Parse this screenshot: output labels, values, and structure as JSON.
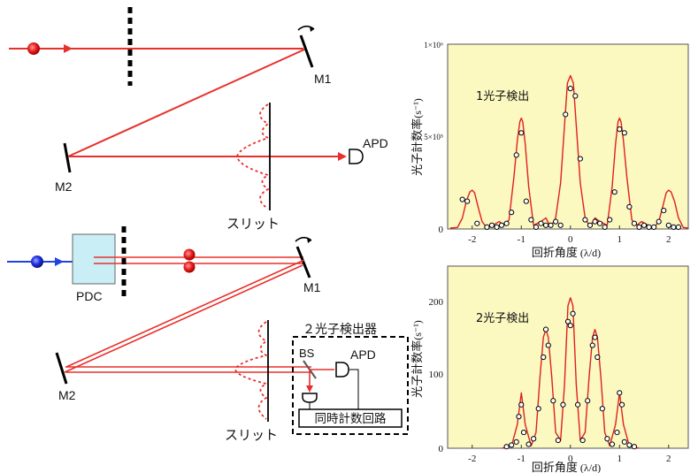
{
  "top": {
    "labels": {
      "m1": "M1",
      "m2": "M2",
      "apd": "APD",
      "slit": "スリット"
    }
  },
  "bottom": {
    "labels": {
      "pdc": "PDC",
      "m1": "M1",
      "m2": "M2",
      "apd": "APD",
      "bs": "BS",
      "slit": "スリット",
      "detector_title": "２光子検出器",
      "coincidence": "同時計数回路"
    }
  },
  "colors": {
    "beam": "#e8302a",
    "pump": "#2244dd",
    "plot_bg": "#fbf8c0",
    "curve": "#e02020",
    "crystal": "#c9eef6"
  },
  "chart_data": [
    {
      "type": "line",
      "title": "1光子検出",
      "xlabel": "回折角度",
      "xlabel_unit": "(λ/d)",
      "ylabel": "光子計数率",
      "ylabel_unit": "(s⁻¹)",
      "xlim": [
        -2.5,
        2.4
      ],
      "ylim": [
        0,
        1000000
      ],
      "x_ticks": [
        "-2",
        "-1",
        "0",
        "1",
        "2"
      ],
      "y_ticks": [
        "0",
        "5×10⁵",
        "1×10⁶"
      ],
      "curve": {
        "x": [
          -2.45,
          -2.3,
          -2.2,
          -2.12,
          -2.05,
          -2.0,
          -1.95,
          -1.88,
          -1.8,
          -1.7,
          -1.55,
          -1.45,
          -1.35,
          -1.25,
          -1.15,
          -1.08,
          -1.03,
          -1.0,
          -0.97,
          -0.92,
          -0.85,
          -0.75,
          -0.6,
          -0.5,
          -0.4,
          -0.3,
          -0.2,
          -0.12,
          -0.06,
          0.0,
          0.06,
          0.12,
          0.2,
          0.3,
          0.4,
          0.5,
          0.6,
          0.75,
          0.85,
          0.92,
          0.97,
          1.0,
          1.03,
          1.08,
          1.15,
          1.25,
          1.35,
          1.45,
          1.55,
          1.7,
          1.8,
          1.88,
          1.95,
          2.0,
          2.05,
          2.12,
          2.2,
          2.3,
          2.4
        ],
        "y": [
          5000,
          8000,
          60000,
          150000,
          200000,
          210000,
          195000,
          120000,
          40000,
          5000,
          25000,
          40000,
          20000,
          50000,
          280000,
          480000,
          580000,
          600000,
          580000,
          460000,
          230000,
          20000,
          40000,
          60000,
          10000,
          60000,
          250000,
          560000,
          790000,
          830000,
          790000,
          560000,
          250000,
          60000,
          10000,
          60000,
          40000,
          20000,
          230000,
          460000,
          580000,
          600000,
          580000,
          480000,
          280000,
          50000,
          20000,
          40000,
          25000,
          5000,
          40000,
          120000,
          195000,
          210000,
          200000,
          150000,
          60000,
          8000,
          5000
        ]
      },
      "points": {
        "x": [
          -2.2,
          -2.1,
          -1.9,
          -1.7,
          -1.6,
          -1.5,
          -1.4,
          -1.3,
          -1.2,
          -1.1,
          -1.0,
          -0.9,
          -0.8,
          -0.7,
          -0.6,
          -0.5,
          -0.4,
          -0.3,
          -0.2,
          -0.1,
          0.0,
          0.1,
          0.2,
          0.3,
          0.4,
          0.5,
          0.6,
          0.7,
          0.8,
          0.9,
          1.0,
          1.1,
          1.2,
          1.3,
          1.4,
          1.5,
          1.6,
          1.7,
          1.8,
          1.9,
          2.0,
          2.1,
          2.2
        ],
        "y": [
          160000,
          150000,
          30000,
          10000,
          20000,
          10000,
          20000,
          30000,
          90000,
          400000,
          520000,
          150000,
          50000,
          10000,
          30000,
          20000,
          20000,
          40000,
          20000,
          620000,
          760000,
          720000,
          380000,
          50000,
          20000,
          40000,
          30000,
          10000,
          50000,
          200000,
          540000,
          520000,
          120000,
          30000,
          10000,
          20000,
          10000,
          10000,
          40000,
          100000,
          20000,
          10000,
          10000
        ]
      }
    },
    {
      "type": "line",
      "title": "2光子検出",
      "xlabel": "回折角度",
      "xlabel_unit": "(λ/d)",
      "ylabel": "光子計数率",
      "ylabel_unit": "(s⁻¹)",
      "xlim": [
        -2.5,
        2.4
      ],
      "ylim": [
        0,
        230
      ],
      "x_ticks": [
        "-2",
        "-1",
        "0",
        "1",
        "2"
      ],
      "y_ticks": [
        "0",
        "100",
        "200"
      ],
      "curve": {
        "x": [
          -1.4,
          -1.2,
          -1.08,
          -1.0,
          -0.92,
          -0.8,
          -0.7,
          -0.62,
          -0.55,
          -0.5,
          -0.45,
          -0.38,
          -0.3,
          -0.2,
          -0.12,
          -0.05,
          0.0,
          0.05,
          0.12,
          0.2,
          0.3,
          0.38,
          0.45,
          0.5,
          0.55,
          0.62,
          0.7,
          0.8,
          0.92,
          1.0,
          1.08,
          1.2,
          1.4
        ],
        "y": [
          0,
          3,
          30,
          70,
          30,
          3,
          20,
          90,
          140,
          150,
          140,
          90,
          20,
          10,
          80,
          180,
          190,
          180,
          80,
          10,
          20,
          90,
          140,
          150,
          140,
          90,
          20,
          3,
          30,
          70,
          30,
          3,
          0
        ]
      },
      "points": {
        "x": [
          -1.3,
          -1.2,
          -1.1,
          -1.05,
          -1.0,
          -0.95,
          -0.85,
          -0.75,
          -0.65,
          -0.55,
          -0.5,
          -0.45,
          -0.35,
          -0.25,
          -0.15,
          -0.05,
          0.0,
          0.05,
          0.15,
          0.25,
          0.35,
          0.45,
          0.5,
          0.55,
          0.65,
          0.75,
          0.85,
          0.95,
          1.0,
          1.05,
          1.1,
          1.2,
          1.3
        ],
        "y": [
          2,
          4,
          8,
          40,
          55,
          20,
          5,
          12,
          50,
          115,
          150,
          130,
          60,
          10,
          55,
          160,
          155,
          170,
          55,
          10,
          60,
          130,
          140,
          115,
          50,
          12,
          5,
          20,
          70,
          55,
          8,
          4,
          2
        ]
      }
    }
  ]
}
